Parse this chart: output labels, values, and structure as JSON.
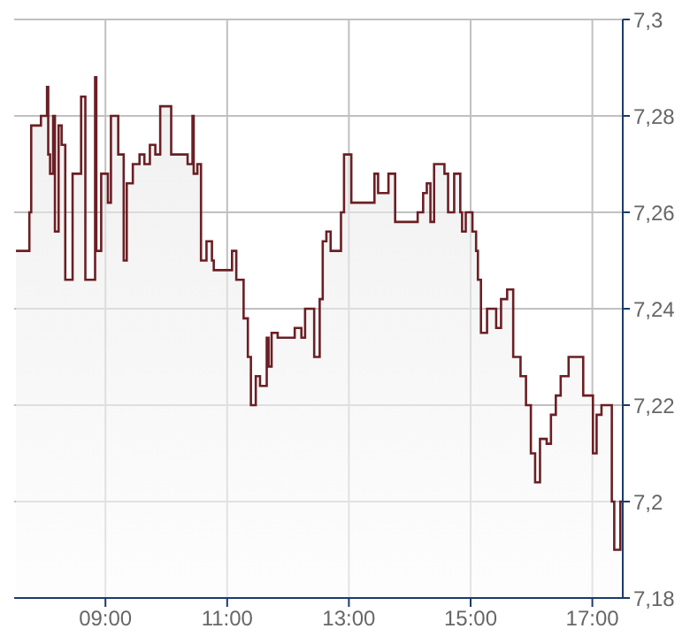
{
  "chart_data": {
    "type": "area",
    "color": "#6b1f24",
    "x": [
      7.53,
      7.75,
      7.75,
      7.78,
      7.78,
      7.94,
      7.94,
      8.04,
      8.04,
      8.06,
      8.06,
      8.09,
      8.09,
      8.14,
      8.14,
      8.17,
      8.17,
      8.23,
      8.23,
      8.28,
      8.28,
      8.34,
      8.34,
      8.46,
      8.46,
      8.6,
      8.6,
      8.67,
      8.67,
      8.83,
      8.83,
      8.85,
      8.85,
      8.93,
      8.93,
      9.04,
      9.04,
      9.09,
      9.09,
      9.21,
      9.21,
      9.3,
      9.3,
      9.35,
      9.35,
      9.45,
      9.45,
      9.56,
      9.56,
      9.64,
      9.64,
      9.73,
      9.73,
      9.82,
      9.82,
      9.9,
      9.9,
      10.08,
      10.08,
      10.35,
      10.35,
      10.43,
      10.43,
      10.45,
      10.45,
      10.51,
      10.51,
      10.57,
      10.57,
      10.66,
      10.66,
      10.75,
      10.75,
      10.78,
      10.78,
      11.08,
      11.08,
      11.15,
      11.15,
      11.27,
      11.27,
      11.34,
      11.34,
      11.39,
      11.39,
      11.47,
      11.47,
      11.54,
      11.54,
      11.65,
      11.65,
      11.68,
      11.68,
      11.73,
      11.73,
      11.83,
      11.83,
      12.11,
      12.11,
      12.22,
      12.22,
      12.28,
      12.28,
      12.43,
      12.43,
      12.52,
      12.52,
      12.57,
      12.57,
      12.63,
      12.63,
      12.7,
      12.7,
      12.87,
      12.87,
      12.92,
      12.92,
      13.04,
      13.04,
      13.42,
      13.42,
      13.48,
      13.48,
      13.65,
      13.65,
      13.76,
      13.76,
      14.13,
      14.13,
      14.22,
      14.22,
      14.28,
      14.28,
      14.34,
      14.34,
      14.4,
      14.4,
      14.57,
      14.57,
      14.63,
      14.63,
      14.73,
      14.73,
      14.83,
      14.83,
      14.86,
      14.86,
      14.92,
      14.92,
      15.03,
      15.03,
      15.09,
      15.09,
      15.12,
      15.12,
      15.17,
      15.17,
      15.27,
      15.27,
      15.42,
      15.42,
      15.5,
      15.5,
      15.6,
      15.6,
      15.7,
      15.7,
      15.82,
      15.82,
      15.91,
      15.91,
      15.99,
      15.99,
      16.06,
      16.06,
      16.14,
      16.14,
      16.25,
      16.25,
      16.32,
      16.32,
      16.4,
      16.4,
      16.48,
      16.48,
      16.61,
      16.61,
      16.85,
      16.85,
      17.01,
      17.01,
      17.07,
      17.07,
      17.15,
      17.15,
      17.32,
      17.32,
      17.36,
      17.36,
      17.46,
      17.46,
      17.49
    ],
    "values": [
      7.252,
      7.252,
      7.26,
      7.26,
      7.278,
      7.278,
      7.28,
      7.28,
      7.286,
      7.286,
      7.272,
      7.272,
      7.268,
      7.268,
      7.28,
      7.28,
      7.256,
      7.256,
      7.278,
      7.278,
      7.274,
      7.274,
      7.246,
      7.246,
      7.268,
      7.268,
      7.284,
      7.284,
      7.246,
      7.246,
      7.288,
      7.288,
      7.252,
      7.252,
      7.268,
      7.268,
      7.262,
      7.262,
      7.28,
      7.28,
      7.272,
      7.272,
      7.25,
      7.25,
      7.266,
      7.266,
      7.27,
      7.27,
      7.272,
      7.272,
      7.27,
      7.27,
      7.274,
      7.274,
      7.272,
      7.272,
      7.282,
      7.282,
      7.272,
      7.272,
      7.27,
      7.27,
      7.28,
      7.28,
      7.268,
      7.268,
      7.27,
      7.27,
      7.25,
      7.25,
      7.254,
      7.254,
      7.25,
      7.25,
      7.248,
      7.248,
      7.252,
      7.252,
      7.246,
      7.246,
      7.238,
      7.238,
      7.23,
      7.23,
      7.22,
      7.22,
      7.226,
      7.226,
      7.224,
      7.224,
      7.234,
      7.234,
      7.228,
      7.228,
      7.235,
      7.235,
      7.234,
      7.234,
      7.236,
      7.236,
      7.234,
      7.234,
      7.24,
      7.24,
      7.23,
      7.23,
      7.242,
      7.242,
      7.254,
      7.254,
      7.256,
      7.256,
      7.252,
      7.252,
      7.26,
      7.26,
      7.272,
      7.272,
      7.262,
      7.262,
      7.268,
      7.268,
      7.264,
      7.264,
      7.268,
      7.268,
      7.258,
      7.258,
      7.26,
      7.26,
      7.264,
      7.264,
      7.266,
      7.266,
      7.258,
      7.258,
      7.27,
      7.27,
      7.268,
      7.268,
      7.26,
      7.26,
      7.268,
      7.268,
      7.26,
      7.26,
      7.256,
      7.256,
      7.26,
      7.26,
      7.256,
      7.256,
      7.252,
      7.252,
      7.246,
      7.246,
      7.235,
      7.235,
      7.24,
      7.24,
      7.236,
      7.236,
      7.242,
      7.242,
      7.244,
      7.244,
      7.23,
      7.23,
      7.226,
      7.226,
      7.22,
      7.22,
      7.21,
      7.21,
      7.204,
      7.204,
      7.213,
      7.213,
      7.212,
      7.212,
      7.218,
      7.218,
      7.222,
      7.222,
      7.226,
      7.226,
      7.23,
      7.23,
      7.222,
      7.222,
      7.21,
      7.21,
      7.218,
      7.218,
      7.22,
      7.22,
      7.2,
      7.2,
      7.19,
      7.19,
      7.2,
      7.2
    ],
    "xlim": [
      7.5,
      17.5
    ],
    "xticks": [
      {
        "value": 9,
        "label": "09:00"
      },
      {
        "value": 11,
        "label": "11:00"
      },
      {
        "value": 13,
        "label": "13:00"
      },
      {
        "value": 15,
        "label": "15:00"
      },
      {
        "value": 17,
        "label": "17:00"
      }
    ],
    "ylim": [
      7.18,
      7.3
    ],
    "yticks": [
      {
        "value": 7.18,
        "label": "7,18"
      },
      {
        "value": 7.2,
        "label": "7,2"
      },
      {
        "value": 7.22,
        "label": "7,22"
      },
      {
        "value": 7.24,
        "label": "7,24"
      },
      {
        "value": 7.26,
        "label": "7,26"
      },
      {
        "value": 7.28,
        "label": "7,28"
      },
      {
        "value": 7.3,
        "label": "7,3"
      }
    ],
    "grid": true
  }
}
